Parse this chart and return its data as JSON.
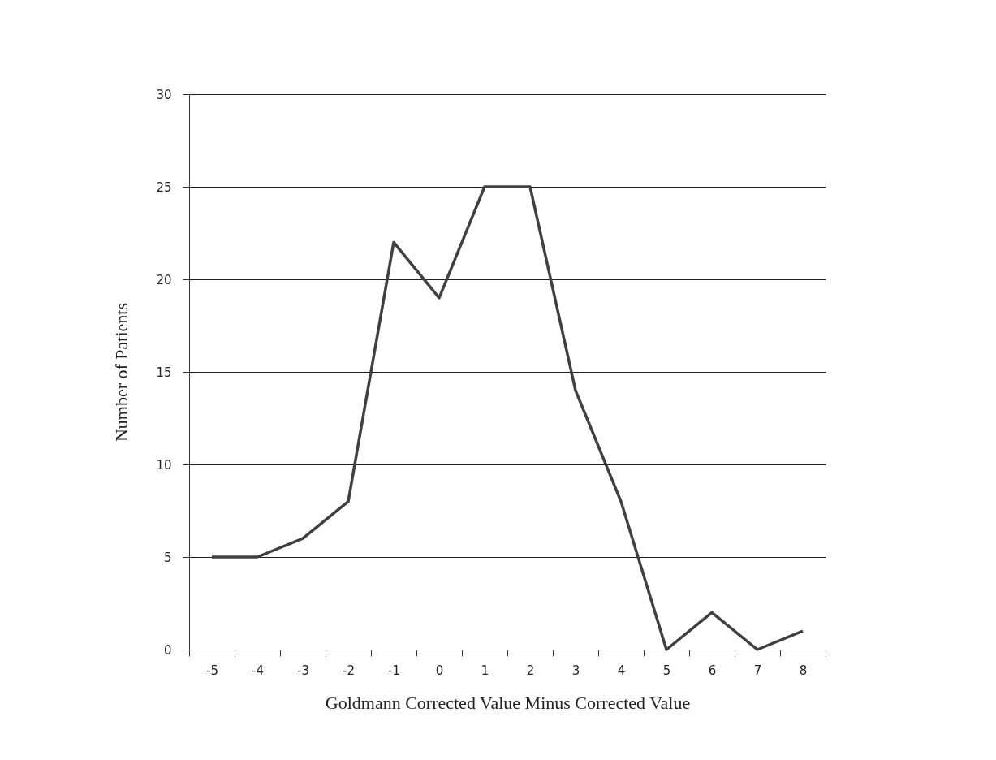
{
  "chart_data": {
    "type": "line",
    "xlabel": "Goldmann Corrected Value Minus Corrected Value",
    "ylabel": "Number of Patients",
    "categories": [
      "-5",
      "-4",
      "-3",
      "-2",
      "-1",
      "0",
      "1",
      "2",
      "3",
      "4",
      "5",
      "6",
      "7",
      "8"
    ],
    "series": [
      {
        "color": "#404040",
        "values": [
          5,
          5,
          6,
          8,
          22,
          19,
          25,
          25,
          14,
          8,
          0,
          2,
          0,
          1
        ]
      }
    ],
    "ylim": [
      0,
      30
    ],
    "yticks": [
      0,
      5,
      10,
      15,
      20,
      25,
      30
    ],
    "grid": "y",
    "marker": "none",
    "line_style": "solid"
  }
}
